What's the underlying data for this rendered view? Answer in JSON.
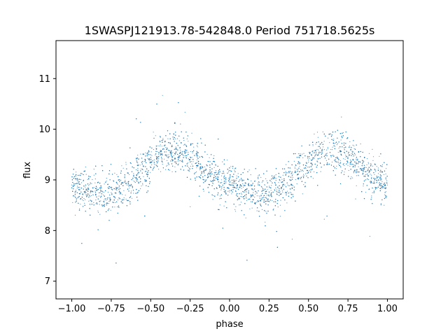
{
  "chart_data": {
    "type": "scatter",
    "title": "1SWASPJ121913.78-542848.0 Period 751718.5625s",
    "xlabel": "phase",
    "ylabel": "flux",
    "xlim": [
      -1.1,
      1.1
    ],
    "ylim": [
      6.65,
      11.75
    ],
    "xticks": [
      -1.0,
      -0.75,
      -0.5,
      -0.25,
      0.0,
      0.25,
      0.5,
      0.75,
      1.0
    ],
    "xtick_labels": [
      "−1.00",
      "−0.75",
      "−0.50",
      "−0.25",
      "0.00",
      "0.25",
      "0.50",
      "0.75",
      "1.00"
    ],
    "yticks": [
      7,
      8,
      9,
      10,
      11
    ],
    "ytick_labels": [
      "7",
      "8",
      "9",
      "10",
      "11"
    ],
    "grid": false,
    "marker_color": "#1f77b4",
    "series": [
      {
        "x": [
          -1.0,
          -0.95,
          -0.9,
          -0.85,
          -0.8,
          -0.75,
          -0.7,
          -0.65,
          -0.6,
          -0.55,
          -0.5,
          -0.45,
          -0.4,
          -0.35,
          -0.3,
          -0.25,
          -0.2,
          -0.15,
          -0.1,
          -0.05,
          0.0,
          0.05,
          0.1,
          0.15,
          0.2,
          0.25,
          0.3,
          0.35,
          0.4,
          0.45,
          0.5,
          0.55,
          0.6,
          0.65,
          0.7,
          0.75,
          0.8,
          0.85,
          0.9,
          0.95,
          1.0
        ],
        "y": [
          8.9,
          8.85,
          8.8,
          8.75,
          8.7,
          8.75,
          8.8,
          8.9,
          9.05,
          9.2,
          9.35,
          9.5,
          9.6,
          9.6,
          9.55,
          9.45,
          9.35,
          9.2,
          9.05,
          8.95,
          8.9,
          8.85,
          8.8,
          8.75,
          8.7,
          8.75,
          8.8,
          8.9,
          9.05,
          9.2,
          9.35,
          9.5,
          9.6,
          9.6,
          9.55,
          9.45,
          9.35,
          9.2,
          9.05,
          8.95,
          8.9
        ]
      }
    ]
  }
}
